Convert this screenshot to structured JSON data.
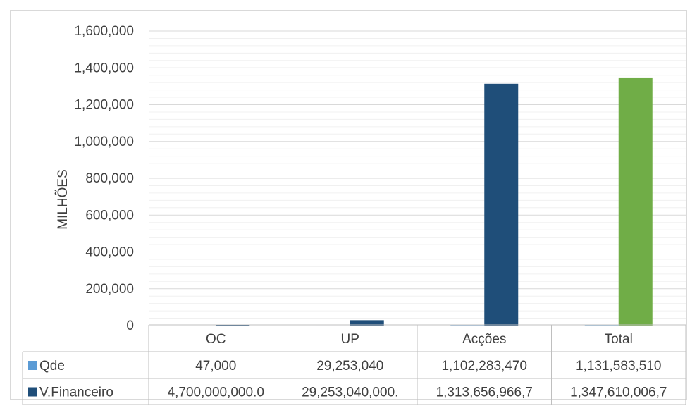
{
  "chart_data": {
    "type": "bar",
    "categories": [
      "OC",
      "UP",
      "Acções",
      "Total"
    ],
    "ylabel": "MILHÕES",
    "ylim": [
      0,
      1600000
    ],
    "yticks": [
      {
        "value": 0,
        "label": "0"
      },
      {
        "value": 200000,
        "label": "200,000"
      },
      {
        "value": 400000,
        "label": "400,000"
      },
      {
        "value": 600000,
        "label": "600,000"
      },
      {
        "value": 800000,
        "label": "800,000"
      },
      {
        "value": 1000000,
        "label": "1,000,000"
      },
      {
        "value": 1200000,
        "label": "1,200,000"
      },
      {
        "value": 1400000,
        "label": "1,400,000"
      },
      {
        "value": 1600000,
        "label": "1,600,000"
      }
    ],
    "grid": true,
    "minor_gridlines_per_major": 4,
    "legend_placement": "data-table-left",
    "series": [
      {
        "name": "Qde",
        "color": "#5b9bd5",
        "values": [
          0.047,
          29.25304,
          1102.28347,
          1131.58351
        ],
        "table_labels": [
          "47,000",
          "29,253,040",
          "1,102,283,470",
          "1,131,583,510"
        ]
      },
      {
        "name": "V.Financeiro",
        "color": "#1f4e79",
        "values": [
          4700,
          29253.04,
          1313656.97,
          1347610.01
        ],
        "table_labels": [
          "4,700,000,000.0",
          "29,253,040,000.",
          "1,313,656,966,7",
          "1,347,610,006,7"
        ]
      }
    ],
    "total_bar_color": "#70ad47"
  }
}
